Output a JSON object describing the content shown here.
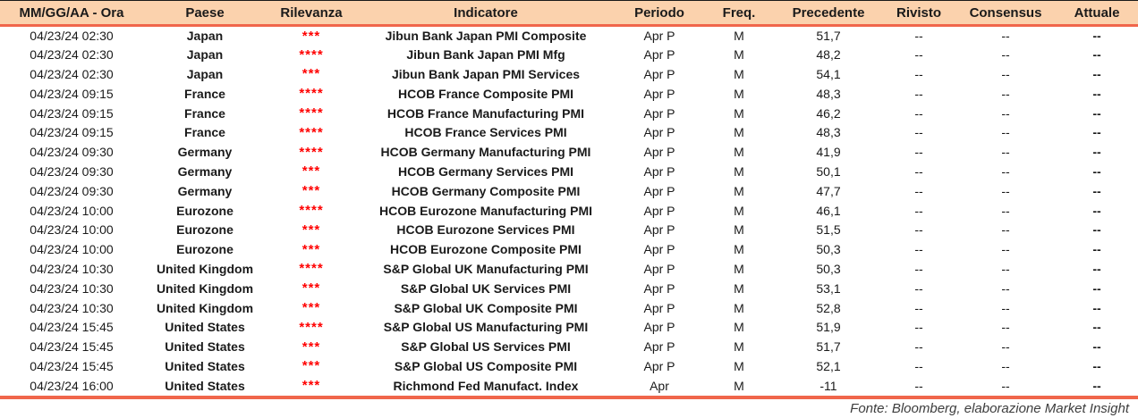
{
  "colors": {
    "header_background": "#FBD2AD",
    "accent_rule": "#F0664B",
    "star_color": "#FF0000",
    "text_color": "#1a1a1a"
  },
  "columns": [
    {
      "key": "date",
      "label": "MM/GG/AA - Ora"
    },
    {
      "key": "country",
      "label": "Paese"
    },
    {
      "key": "stars",
      "label": "Rilevanza"
    },
    {
      "key": "indicator",
      "label": "Indicatore"
    },
    {
      "key": "period",
      "label": "Periodo"
    },
    {
      "key": "freq",
      "label": "Freq."
    },
    {
      "key": "previous",
      "label": "Precedente"
    },
    {
      "key": "revised",
      "label": "Rivisto"
    },
    {
      "key": "consensus",
      "label": "Consensus"
    },
    {
      "key": "actual",
      "label": "Attuale"
    }
  ],
  "rows": [
    {
      "date": "04/23/24 02:30",
      "country": "Japan",
      "stars": 3,
      "indicator": "Jibun Bank Japan PMI Composite",
      "period": "Apr P",
      "freq": "M",
      "previous": "51,7",
      "revised": "--",
      "consensus": "--",
      "actual": "--"
    },
    {
      "date": "04/23/24 02:30",
      "country": "Japan",
      "stars": 4,
      "indicator": "Jibun Bank Japan PMI Mfg",
      "period": "Apr P",
      "freq": "M",
      "previous": "48,2",
      "revised": "--",
      "consensus": "--",
      "actual": "--"
    },
    {
      "date": "04/23/24 02:30",
      "country": "Japan",
      "stars": 3,
      "indicator": "Jibun Bank Japan PMI Services",
      "period": "Apr P",
      "freq": "M",
      "previous": "54,1",
      "revised": "--",
      "consensus": "--",
      "actual": "--"
    },
    {
      "date": "04/23/24 09:15",
      "country": "France",
      "stars": 4,
      "indicator": "HCOB France Composite PMI",
      "period": "Apr P",
      "freq": "M",
      "previous": "48,3",
      "revised": "--",
      "consensus": "--",
      "actual": "--"
    },
    {
      "date": "04/23/24 09:15",
      "country": "France",
      "stars": 4,
      "indicator": "HCOB France Manufacturing PMI",
      "period": "Apr P",
      "freq": "M",
      "previous": "46,2",
      "revised": "--",
      "consensus": "--",
      "actual": "--"
    },
    {
      "date": "04/23/24 09:15",
      "country": "France",
      "stars": 4,
      "indicator": "HCOB France Services PMI",
      "period": "Apr P",
      "freq": "M",
      "previous": "48,3",
      "revised": "--",
      "consensus": "--",
      "actual": "--"
    },
    {
      "date": "04/23/24 09:30",
      "country": "Germany",
      "stars": 4,
      "indicator": "HCOB Germany Manufacturing PMI",
      "period": "Apr P",
      "freq": "M",
      "previous": "41,9",
      "revised": "--",
      "consensus": "--",
      "actual": "--"
    },
    {
      "date": "04/23/24 09:30",
      "country": "Germany",
      "stars": 3,
      "indicator": "HCOB Germany Services PMI",
      "period": "Apr P",
      "freq": "M",
      "previous": "50,1",
      "revised": "--",
      "consensus": "--",
      "actual": "--"
    },
    {
      "date": "04/23/24 09:30",
      "country": "Germany",
      "stars": 3,
      "indicator": "HCOB Germany Composite PMI",
      "period": "Apr P",
      "freq": "M",
      "previous": "47,7",
      "revised": "--",
      "consensus": "--",
      "actual": "--"
    },
    {
      "date": "04/23/24 10:00",
      "country": "Eurozone",
      "stars": 4,
      "indicator": "HCOB Eurozone Manufacturing PMI",
      "period": "Apr P",
      "freq": "M",
      "previous": "46,1",
      "revised": "--",
      "consensus": "--",
      "actual": "--"
    },
    {
      "date": "04/23/24 10:00",
      "country": "Eurozone",
      "stars": 3,
      "indicator": "HCOB Eurozone Services PMI",
      "period": "Apr P",
      "freq": "M",
      "previous": "51,5",
      "revised": "--",
      "consensus": "--",
      "actual": "--"
    },
    {
      "date": "04/23/24 10:00",
      "country": "Eurozone",
      "stars": 3,
      "indicator": "HCOB Eurozone Composite PMI",
      "period": "Apr P",
      "freq": "M",
      "previous": "50,3",
      "revised": "--",
      "consensus": "--",
      "actual": "--"
    },
    {
      "date": "04/23/24 10:30",
      "country": "United Kingdom",
      "stars": 4,
      "indicator": "S&P Global UK Manufacturing PMI",
      "period": "Apr P",
      "freq": "M",
      "previous": "50,3",
      "revised": "--",
      "consensus": "--",
      "actual": "--"
    },
    {
      "date": "04/23/24 10:30",
      "country": "United Kingdom",
      "stars": 3,
      "indicator": "S&P Global UK Services PMI",
      "period": "Apr P",
      "freq": "M",
      "previous": "53,1",
      "revised": "--",
      "consensus": "--",
      "actual": "--"
    },
    {
      "date": "04/23/24 10:30",
      "country": "United Kingdom",
      "stars": 3,
      "indicator": "S&P Global UK Composite PMI",
      "period": "Apr P",
      "freq": "M",
      "previous": "52,8",
      "revised": "--",
      "consensus": "--",
      "actual": "--"
    },
    {
      "date": "04/23/24 15:45",
      "country": "United States",
      "stars": 4,
      "indicator": "S&P Global US Manufacturing PMI",
      "period": "Apr P",
      "freq": "M",
      "previous": "51,9",
      "revised": "--",
      "consensus": "--",
      "actual": "--"
    },
    {
      "date": "04/23/24 15:45",
      "country": "United States",
      "stars": 3,
      "indicator": "S&P Global US Services PMI",
      "period": "Apr P",
      "freq": "M",
      "previous": "51,7",
      "revised": "--",
      "consensus": "--",
      "actual": "--"
    },
    {
      "date": "04/23/24 15:45",
      "country": "United States",
      "stars": 3,
      "indicator": "S&P Global US Composite PMI",
      "period": "Apr P",
      "freq": "M",
      "previous": "52,1",
      "revised": "--",
      "consensus": "--",
      "actual": "--"
    },
    {
      "date": "04/23/24 16:00",
      "country": "United States",
      "stars": 3,
      "indicator": "Richmond Fed Manufact. Index",
      "period": "Apr",
      "freq": "M",
      "previous": "-11",
      "revised": "--",
      "consensus": "--",
      "actual": "--"
    }
  ],
  "footer": {
    "source": "Fonte: Bloomberg, elaborazione Market Insight"
  }
}
